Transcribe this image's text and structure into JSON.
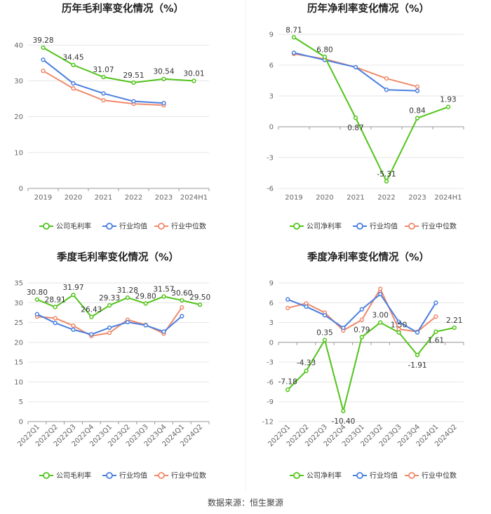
{
  "source": "数据来源：恒生聚源",
  "colors": {
    "company": "#52c41a",
    "industry_avg": "#4a7fe0",
    "industry_median": "#f0896a",
    "grid": "#e6e6e6",
    "axis": "#999999"
  },
  "chart_data": [
    {
      "type": "line",
      "title": "历年毛利率变化情况（%）",
      "categories": [
        "2019",
        "2020",
        "2021",
        "2022",
        "2023",
        "2024H1"
      ],
      "yticks": [
        0,
        10,
        20,
        30,
        40
      ],
      "ylim": [
        0,
        43
      ],
      "series": [
        {
          "name": "公司毛利率",
          "values": [
            39.28,
            34.45,
            31.07,
            29.51,
            30.54,
            30.01
          ]
        },
        {
          "name": "行业均值",
          "values": [
            35.9,
            29.3,
            26.5,
            24.3,
            23.8,
            null
          ]
        },
        {
          "name": "行业中位数",
          "values": [
            32.8,
            27.9,
            24.6,
            23.6,
            23.2,
            null
          ]
        }
      ],
      "labels": [
        "39.28",
        "34.45",
        "31.07",
        "29.51",
        "30.54",
        "30.01"
      ]
    },
    {
      "type": "line",
      "title": "历年净利率变化情况（%）",
      "categories": [
        "2019",
        "2020",
        "2021",
        "2022",
        "2023",
        "2024H1"
      ],
      "yticks": [
        -6,
        -3,
        0,
        3,
        6,
        9
      ],
      "ylim": [
        -6,
        9
      ],
      "series": [
        {
          "name": "公司净利率",
          "values": [
            8.71,
            6.8,
            0.87,
            -5.31,
            0.84,
            1.93
          ]
        },
        {
          "name": "行业均值",
          "values": [
            7.2,
            6.5,
            5.8,
            3.6,
            3.5,
            null
          ]
        },
        {
          "name": "行业中位数",
          "values": [
            7.1,
            6.6,
            5.8,
            4.7,
            3.9,
            null
          ]
        }
      ],
      "labels": [
        "8.71",
        "6.80",
        "0.87",
        "-5.31",
        "0.84",
        "1.93"
      ]
    },
    {
      "type": "line",
      "title": "季度毛利率变化情况（%）",
      "categories": [
        "2022Q1",
        "2022Q2",
        "2022Q3",
        "2022Q4",
        "2023Q1",
        "2023Q2",
        "2023Q3",
        "2023Q4",
        "2024Q1",
        "2024Q2"
      ],
      "yticks": [
        0,
        5,
        10,
        15,
        20,
        25,
        30,
        35
      ],
      "ylim": [
        0,
        35
      ],
      "series": [
        {
          "name": "公司毛利率",
          "values": [
            30.8,
            28.91,
            31.97,
            26.43,
            29.33,
            31.28,
            29.8,
            31.57,
            30.6,
            29.5
          ]
        },
        {
          "name": "行业均值",
          "values": [
            27.1,
            24.9,
            23.2,
            22.0,
            23.7,
            25.1,
            24.3,
            22.7,
            26.6,
            null
          ]
        },
        {
          "name": "行业中位数",
          "values": [
            26.5,
            26.1,
            24.2,
            21.6,
            22.4,
            25.7,
            24.4,
            22.2,
            28.8,
            null
          ]
        }
      ],
      "labels": [
        "30.80",
        "28.91",
        "31.97",
        "26.43",
        "29.33",
        "31.28",
        "29.80",
        "31.57",
        "30.60",
        "29.50"
      ]
    },
    {
      "type": "line",
      "title": "季度净利率变化情况（%）",
      "categories": [
        "2022Q1",
        "2022Q2",
        "2022Q3",
        "2022Q4",
        "2023Q1",
        "2023Q2",
        "2023Q3",
        "2023Q4",
        "2024Q1",
        "2024Q2"
      ],
      "yticks": [
        -12,
        -9,
        -6,
        -3,
        0,
        3,
        6,
        9
      ],
      "ylim": [
        -12,
        9
      ],
      "series": [
        {
          "name": "公司净利率",
          "values": [
            -7.18,
            -4.33,
            0.35,
            -10.4,
            0.79,
            3.0,
            1.5,
            -1.91,
            1.61,
            2.21
          ]
        },
        {
          "name": "行业均值",
          "values": [
            6.5,
            5.4,
            4.1,
            2.2,
            5.0,
            7.3,
            3.1,
            1.5,
            6.0,
            null
          ]
        },
        {
          "name": "行业中位数",
          "values": [
            5.2,
            5.9,
            4.5,
            1.8,
            3.4,
            8.1,
            2.0,
            1.6,
            3.9,
            null
          ]
        }
      ],
      "labels": [
        "-7.18",
        "-4.33",
        "0.35",
        "-10.40",
        "0.79",
        "3.00",
        "1.50",
        "-1.91",
        "1.61",
        "2.21"
      ]
    }
  ]
}
